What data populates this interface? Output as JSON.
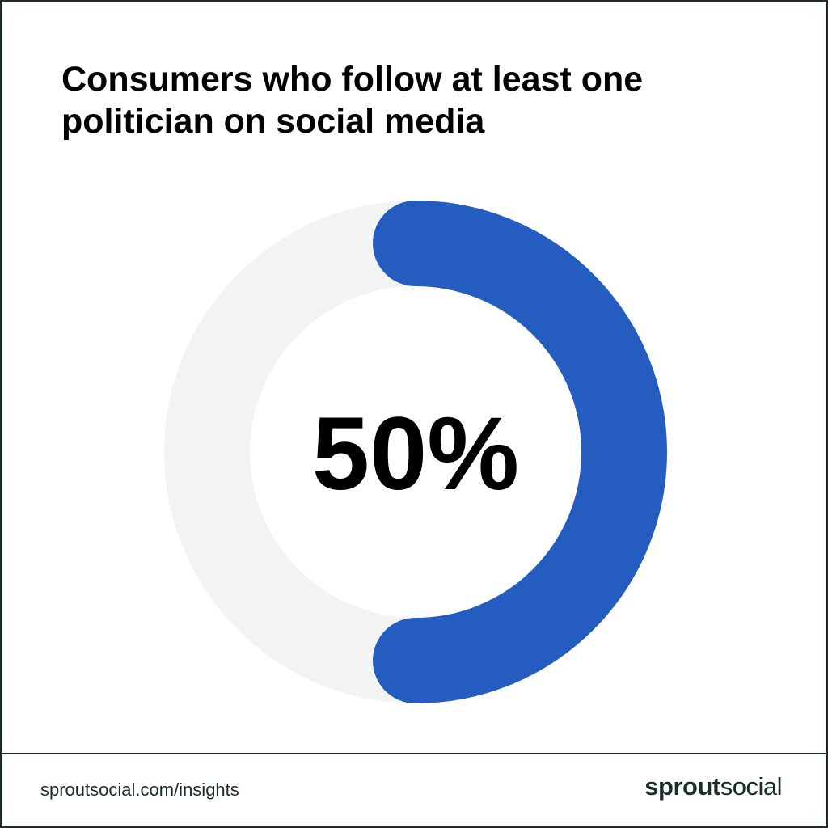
{
  "title": "Consumers who follow at least one politician on social media",
  "footer": {
    "url": "sproutsocial.com/insights",
    "brand_bold": "sprout",
    "brand_light": "social"
  },
  "colors": {
    "accent": "#245dbf",
    "track": "#f2f3f3",
    "text": "#000000",
    "border": "#1c2b2b"
  },
  "chart_data": {
    "type": "pie",
    "style": "donut",
    "values": [
      50,
      50
    ],
    "highlight_index": 0,
    "center_label": "50%",
    "title": "Consumers who follow at least one politician on social media"
  }
}
